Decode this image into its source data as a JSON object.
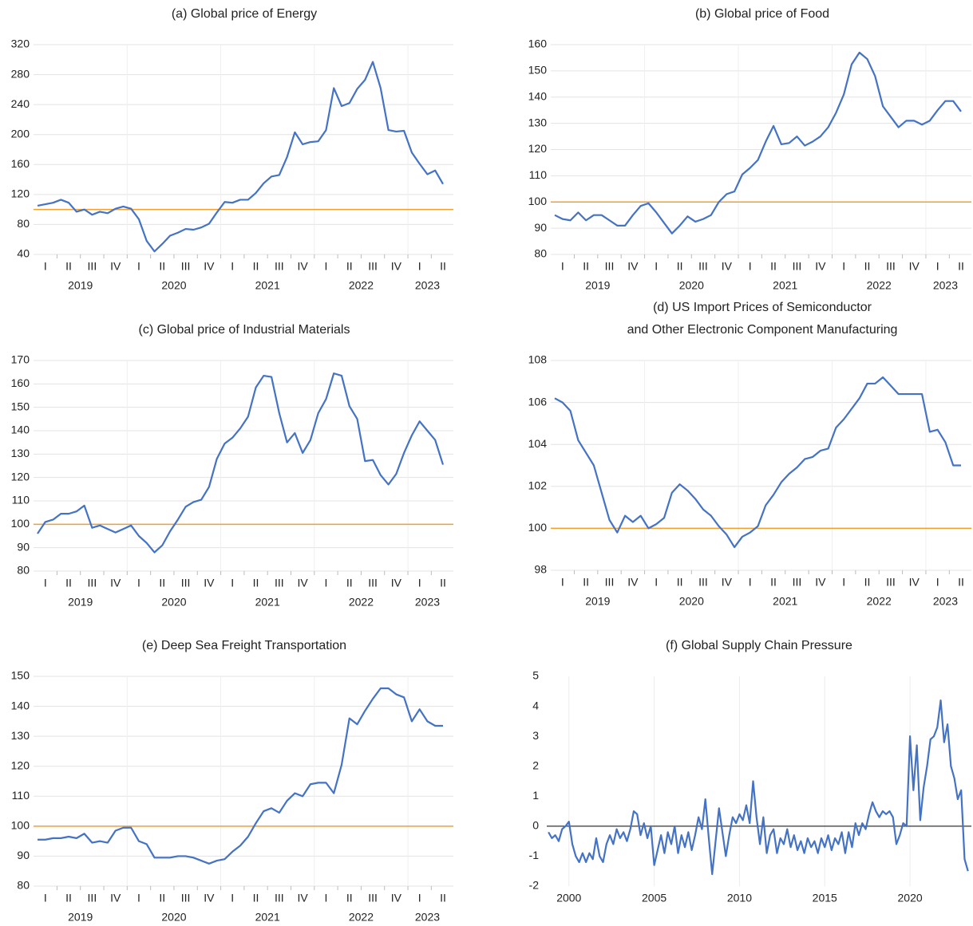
{
  "chart_data": [
    {
      "type": "line",
      "title": "(a) Global price of Energy",
      "color": "#4472c4",
      "categories": [
        null,
        "I",
        null,
        null,
        "II",
        null,
        null,
        "III",
        null,
        null,
        "IV",
        null,
        null,
        "I",
        null,
        null,
        "II",
        null,
        null,
        "III",
        null,
        null,
        "IV",
        null,
        null,
        "I",
        null,
        null,
        "II",
        null,
        null,
        "III",
        null,
        null,
        "IV",
        null,
        null,
        "I",
        null,
        null,
        "II",
        null,
        null,
        "III",
        null,
        null,
        "IV",
        null,
        null,
        "I",
        null,
        null,
        "II"
      ],
      "year_labels": [
        "2019",
        "2020",
        "2021",
        "2022",
        "2023"
      ],
      "values": [
        105,
        107,
        109,
        113,
        109,
        97,
        100,
        93,
        97,
        95,
        101,
        104,
        101,
        87,
        58,
        44,
        54,
        65,
        69,
        74,
        73,
        76,
        81,
        96,
        110,
        109,
        113,
        113,
        122,
        135,
        144,
        146,
        170,
        203,
        187,
        190,
        191,
        206,
        262,
        238,
        242,
        261,
        273,
        297,
        262,
        206,
        204,
        205,
        176,
        161,
        147,
        152,
        134
      ],
      "ylim": [
        40,
        320
      ],
      "yticks": [
        40,
        80,
        120,
        160,
        200,
        240,
        280,
        320
      ],
      "grid": true,
      "reference_line": 100,
      "reference_color": "#f0a030"
    },
    {
      "type": "line",
      "title": "(b) Global price of Food",
      "color": "#4472c4",
      "categories": [
        null,
        "I",
        null,
        null,
        "II",
        null,
        null,
        "III",
        null,
        null,
        "IV",
        null,
        null,
        "I",
        null,
        null,
        "II",
        null,
        null,
        "III",
        null,
        null,
        "IV",
        null,
        null,
        "I",
        null,
        null,
        "II",
        null,
        null,
        "III",
        null,
        null,
        "IV",
        null,
        null,
        "I",
        null,
        null,
        "II",
        null,
        null,
        "III",
        null,
        null,
        "IV",
        null,
        null,
        "I",
        null,
        null,
        "II"
      ],
      "year_labels": [
        "2019",
        "2020",
        "2021",
        "2022",
        "2023"
      ],
      "values": [
        95,
        93.5,
        93,
        96,
        93,
        95,
        95,
        93,
        91,
        91,
        95,
        98.5,
        99.5,
        96,
        92,
        88,
        91,
        94.5,
        92.5,
        93.5,
        95,
        100,
        103,
        104,
        110.5,
        113,
        116,
        123,
        129,
        122,
        122.5,
        125,
        121.5,
        123,
        125,
        128.5,
        134,
        141,
        152.5,
        157,
        154.5,
        148,
        136.5,
        132.5,
        128.5,
        131,
        131,
        129.5,
        131,
        135,
        138.5,
        138.5,
        134.5
      ],
      "ylim": [
        80,
        160
      ],
      "yticks": [
        80,
        90,
        100,
        110,
        120,
        130,
        140,
        150,
        160
      ],
      "grid": true,
      "reference_line": 100,
      "reference_color": "#f0a030"
    },
    {
      "type": "line",
      "title": "(c) Global price of Industrial Materials",
      "color": "#4472c4",
      "categories": [
        null,
        "I",
        null,
        null,
        "II",
        null,
        null,
        "III",
        null,
        null,
        "IV",
        null,
        null,
        "I",
        null,
        null,
        "II",
        null,
        null,
        "III",
        null,
        null,
        "IV",
        null,
        null,
        "I",
        null,
        null,
        "II",
        null,
        null,
        "III",
        null,
        null,
        "IV",
        null,
        null,
        "I",
        null,
        null,
        "II",
        null,
        null,
        "III",
        null,
        null,
        "IV",
        null,
        null,
        "I",
        null,
        null,
        "II"
      ],
      "year_labels": [
        "2019",
        "2020",
        "2021",
        "2022",
        "2023"
      ],
      "values": [
        96,
        101,
        102,
        104.5,
        104.5,
        105.5,
        108,
        98.5,
        99.5,
        98,
        96.5,
        98,
        99.5,
        95,
        92,
        88,
        91,
        97,
        102,
        107.5,
        109.5,
        110.5,
        116,
        128,
        134.5,
        137,
        141,
        146,
        158.5,
        163.5,
        163,
        147.5,
        135,
        139,
        130.5,
        136,
        147.5,
        153.5,
        164.5,
        163.5,
        150.5,
        145,
        127,
        127.5,
        121,
        117,
        121.5,
        130.5,
        138,
        144,
        140,
        136,
        125.5
      ],
      "ylim": [
        80,
        170
      ],
      "yticks": [
        80,
        90,
        100,
        110,
        120,
        130,
        140,
        150,
        160,
        170
      ],
      "grid": true,
      "reference_line": 100,
      "reference_color": "#f0a030"
    },
    {
      "type": "line",
      "title": [
        "(d) US Import Prices of Semiconductor",
        "and Other Electronic Component Manufacturing"
      ],
      "color": "#4472c4",
      "categories": [
        null,
        "I",
        null,
        null,
        "II",
        null,
        null,
        "III",
        null,
        null,
        "IV",
        null,
        null,
        "I",
        null,
        null,
        "II",
        null,
        null,
        "III",
        null,
        null,
        "IV",
        null,
        null,
        "I",
        null,
        null,
        "II",
        null,
        null,
        "III",
        null,
        null,
        "IV",
        null,
        null,
        "I",
        null,
        null,
        "II",
        null,
        null,
        "III",
        null,
        null,
        "IV",
        null,
        null,
        "I",
        null,
        null,
        "II"
      ],
      "year_labels": [
        "2019",
        "2020",
        "2021",
        "2022",
        "2023"
      ],
      "values": [
        106.2,
        106.0,
        105.6,
        104.2,
        103.6,
        103.0,
        101.7,
        100.4,
        99.8,
        100.6,
        100.3,
        100.6,
        100.0,
        100.2,
        100.5,
        101.7,
        102.1,
        101.8,
        101.4,
        100.9,
        100.6,
        100.1,
        99.7,
        99.1,
        99.6,
        99.8,
        100.1,
        101.1,
        101.6,
        102.2,
        102.6,
        102.9,
        103.3,
        103.4,
        103.7,
        103.8,
        104.8,
        105.2,
        105.7,
        106.2,
        106.9,
        106.9,
        107.2,
        106.8,
        106.4,
        106.4,
        106.4,
        106.4,
        104.6,
        104.7,
        104.1,
        103.0,
        103.0
      ],
      "ylim": [
        98,
        108
      ],
      "yticks": [
        98,
        100,
        102,
        104,
        106,
        108
      ],
      "grid": true,
      "reference_line": 100,
      "reference_color": "#f0a030"
    },
    {
      "type": "line",
      "title": "(e) Deep Sea Freight Transportation",
      "color": "#4472c4",
      "categories": [
        null,
        "I",
        null,
        null,
        "II",
        null,
        null,
        "III",
        null,
        null,
        "IV",
        null,
        null,
        "I",
        null,
        null,
        "II",
        null,
        null,
        "III",
        null,
        null,
        "IV",
        null,
        null,
        "I",
        null,
        null,
        "II",
        null,
        null,
        "III",
        null,
        null,
        "IV",
        null,
        null,
        "I",
        null,
        null,
        "II",
        null,
        null,
        "III",
        null,
        null,
        "IV",
        null,
        null,
        "I",
        null,
        null,
        "II"
      ],
      "year_labels": [
        "2019",
        "2020",
        "2021",
        "2022",
        "2023"
      ],
      "values": [
        95.5,
        95.5,
        96,
        96,
        96.5,
        96,
        97.5,
        94.5,
        95,
        94.5,
        98.5,
        99.5,
        99.5,
        95,
        94,
        89.5,
        89.5,
        89.5,
        90,
        90,
        89.5,
        88.5,
        87.5,
        88.5,
        89,
        91.5,
        93.5,
        96.5,
        101,
        105,
        106,
        104.5,
        108.5,
        111,
        110,
        114,
        114.5,
        114.5,
        111,
        120.5,
        136,
        134,
        138.5,
        142.5,
        146,
        146,
        144,
        143,
        135,
        139,
        135,
        133.5,
        133.5
      ],
      "ylim": [
        80,
        150
      ],
      "yticks": [
        80,
        90,
        100,
        110,
        120,
        130,
        140,
        150
      ],
      "grid": true,
      "reference_line": 100,
      "reference_color": "#f0a030"
    },
    {
      "type": "line",
      "title": "(f) Global Supply Chain Pressure",
      "color": "#4472c4",
      "x": [
        1998.8,
        1999,
        1999.2,
        1999.4,
        1999.6,
        1999.8,
        2000,
        2000.2,
        2000.4,
        2000.6,
        2000.8,
        2001,
        2001.2,
        2001.4,
        2001.6,
        2001.8,
        2002,
        2002.2,
        2002.4,
        2002.6,
        2002.8,
        2003,
        2003.2,
        2003.4,
        2003.6,
        2003.8,
        2004,
        2004.2,
        2004.4,
        2004.6,
        2004.8,
        2005,
        2005.2,
        2005.4,
        2005.6,
        2005.8,
        2006,
        2006.2,
        2006.4,
        2006.6,
        2006.8,
        2007,
        2007.2,
        2007.4,
        2007.6,
        2007.8,
        2008,
        2008.2,
        2008.4,
        2008.6,
        2008.8,
        2009,
        2009.2,
        2009.4,
        2009.6,
        2009.8,
        2010,
        2010.2,
        2010.4,
        2010.6,
        2010.8,
        2011,
        2011.2,
        2011.4,
        2011.6,
        2011.8,
        2012,
        2012.2,
        2012.4,
        2012.6,
        2012.8,
        2013,
        2013.2,
        2013.4,
        2013.6,
        2013.8,
        2014,
        2014.2,
        2014.4,
        2014.6,
        2014.8,
        2015,
        2015.2,
        2015.4,
        2015.6,
        2015.8,
        2016,
        2016.2,
        2016.4,
        2016.6,
        2016.8,
        2017,
        2017.2,
        2017.4,
        2017.6,
        2017.8,
        2018,
        2018.2,
        2018.4,
        2018.6,
        2018.8,
        2019,
        2019.2,
        2019.4,
        2019.6,
        2019.8,
        2020,
        2020.2,
        2020.4,
        2020.6,
        2020.8,
        2021,
        2021.2,
        2021.4,
        2021.6,
        2021.8,
        2022,
        2022.2,
        2022.4,
        2022.6,
        2022.8,
        2023,
        2023.2,
        2023.4
      ],
      "values": [
        -0.2,
        -0.4,
        -0.3,
        -0.5,
        -0.1,
        0.0,
        0.15,
        -0.6,
        -1.0,
        -1.2,
        -0.9,
        -1.2,
        -0.9,
        -1.1,
        -0.4,
        -1.0,
        -1.2,
        -0.6,
        -0.3,
        -0.6,
        -0.1,
        -0.4,
        -0.2,
        -0.5,
        -0.1,
        0.5,
        0.4,
        -0.3,
        0.1,
        -0.4,
        0.0,
        -1.3,
        -0.8,
        -0.3,
        -0.9,
        -0.2,
        -0.6,
        0.0,
        -0.9,
        -0.3,
        -0.7,
        -0.2,
        -0.8,
        -0.3,
        0.3,
        -0.1,
        0.9,
        -0.4,
        -1.6,
        -0.5,
        0.6,
        -0.2,
        -1.0,
        -0.3,
        0.3,
        0.1,
        0.4,
        0.2,
        0.7,
        0.1,
        1.5,
        0.3,
        -0.6,
        0.3,
        -0.9,
        -0.3,
        -0.1,
        -0.9,
        -0.4,
        -0.6,
        -0.1,
        -0.7,
        -0.3,
        -0.8,
        -0.5,
        -0.9,
        -0.4,
        -0.7,
        -0.5,
        -0.9,
        -0.4,
        -0.7,
        -0.3,
        -0.8,
        -0.4,
        -0.6,
        -0.2,
        -0.9,
        -0.2,
        -0.7,
        0.1,
        -0.3,
        0.1,
        -0.1,
        0.4,
        0.8,
        0.5,
        0.3,
        0.5,
        0.4,
        0.5,
        0.3,
        -0.6,
        -0.3,
        0.1,
        0.0,
        3.0,
        1.2,
        2.7,
        0.2,
        1.3,
        2.0,
        2.9,
        3.0,
        3.3,
        4.2,
        2.8,
        3.4,
        2.0,
        1.6,
        0.9,
        1.2,
        -1.1,
        -1.5
      ],
      "xlim": [
        1998.7,
        2023.6
      ],
      "xticks": [
        2000,
        2005,
        2010,
        2015,
        2020
      ],
      "ylim": [
        -2,
        5
      ],
      "yticks": [
        -2,
        -1,
        0,
        1,
        2,
        3,
        4,
        5
      ],
      "grid": "x",
      "reference_line": 0,
      "reference_color": "#000000"
    }
  ]
}
